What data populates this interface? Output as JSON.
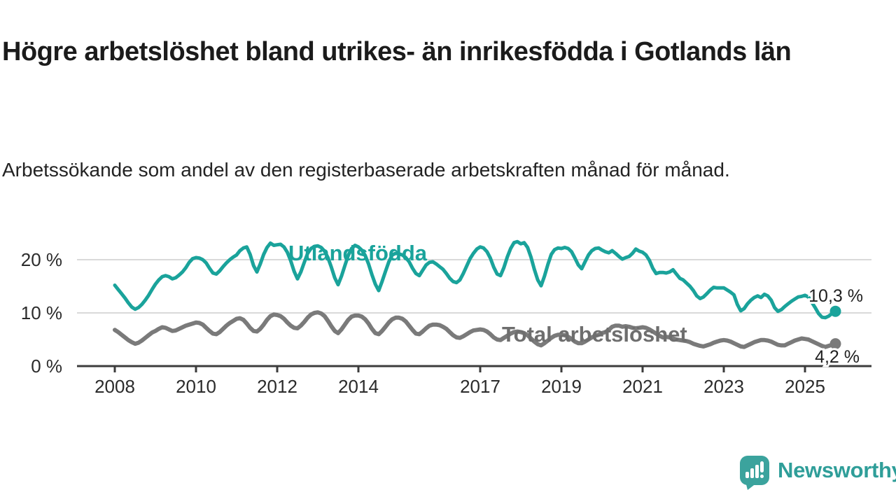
{
  "header": {
    "title": "Högre arbetslöshet bland utrikes- än inrikesfödda i Gotlands län",
    "subtitle": "Arbetssökande som andel av den registerbaserade arbetskraften månad för månad."
  },
  "footer": {
    "brand": "Newsworthy",
    "icon_color": "#3ba39d",
    "text_color": "#2f9e99"
  },
  "chart_data": {
    "type": "line",
    "title": "Högre arbetslöshet bland utrikes- än inrikesfödda i Gotlands län",
    "subtitle": "Arbetssökande som andel av den registerbaserade arbetskraften månad för månad.",
    "unit": "%",
    "grid": "horizontal-only",
    "colors": {
      "grid": "#d9d9d9",
      "axis": "#3c3c3c",
      "tick_text": "#2b2b2b",
      "value_label": "#1f1f1f"
    },
    "x_axis": {
      "tick_years": [
        2008,
        2010,
        2012,
        2014,
        2017,
        2019,
        2021,
        2023,
        2025
      ],
      "tick_labels": [
        "2008",
        "2010",
        "2012",
        "2014",
        "2017",
        "2019",
        "2021",
        "2023",
        "2025"
      ],
      "range_years": [
        2007.1,
        2026.4
      ]
    },
    "y_axis": {
      "tick_values": [
        0,
        10,
        20
      ],
      "tick_labels": [
        "0 %",
        "10 %",
        "20 %"
      ],
      "grid_values": [
        10,
        20
      ],
      "range": [
        0,
        24
      ]
    },
    "series": [
      {
        "name": "Utlandsfödda",
        "color": "#1aa39b",
        "label_color": "#1aa39b",
        "end_label": "10,3 %",
        "end_value": 10.3,
        "start_year": 2008,
        "start_month": 1,
        "values": [
          15.2,
          14.4,
          13.6,
          12.8,
          11.9,
          11.1,
          10.7,
          11.0,
          11.6,
          12.4,
          13.3,
          14.4,
          15.4,
          16.2,
          16.8,
          17.0,
          16.8,
          16.4,
          16.6,
          17.1,
          17.7,
          18.5,
          19.5,
          20.2,
          20.4,
          20.3,
          20.0,
          19.4,
          18.4,
          17.5,
          17.3,
          17.9,
          18.7,
          19.4,
          20.0,
          20.5,
          20.9,
          21.7,
          22.2,
          22.4,
          21.0,
          18.9,
          17.7,
          19.2,
          21.0,
          22.3,
          23.1,
          22.7,
          22.8,
          22.9,
          22.4,
          21.4,
          19.8,
          17.8,
          16.4,
          17.7,
          19.5,
          21.2,
          22.1,
          22.5,
          22.6,
          22.3,
          21.6,
          20.4,
          18.6,
          16.6,
          15.3,
          16.9,
          18.9,
          20.8,
          22.1,
          22.7,
          22.4,
          21.8,
          20.8,
          19.2,
          17.2,
          15.4,
          14.2,
          15.9,
          17.8,
          19.6,
          20.9,
          21.2,
          21.1,
          20.9,
          20.4,
          19.6,
          18.4,
          17.4,
          17.0,
          18.0,
          19.0,
          19.5,
          19.6,
          19.2,
          18.7,
          18.2,
          17.4,
          16.5,
          15.9,
          15.7,
          16.2,
          17.4,
          18.8,
          20.2,
          21.2,
          22.0,
          22.4,
          22.2,
          21.5,
          20.3,
          18.6,
          17.3,
          17.0,
          18.5,
          20.5,
          22.1,
          23.2,
          23.4,
          23.0,
          23.2,
          22.3,
          20.5,
          18.2,
          16.2,
          15.1,
          16.9,
          19.1,
          21.0,
          21.9,
          22.2,
          22.1,
          22.3,
          22.1,
          21.5,
          20.3,
          19.0,
          18.3,
          19.6,
          20.9,
          21.7,
          22.1,
          22.2,
          21.8,
          21.5,
          21.3,
          21.7,
          21.2,
          20.6,
          20.1,
          20.4,
          20.6,
          21.2,
          22.0,
          21.6,
          21.4,
          20.9,
          19.9,
          18.4,
          17.4,
          17.6,
          17.6,
          17.5,
          17.7,
          18.1,
          17.3,
          16.5,
          16.2,
          15.6,
          15.0,
          14.2,
          13.2,
          12.7,
          13.0,
          13.6,
          14.3,
          14.8,
          14.7,
          14.7,
          14.7,
          14.3,
          13.9,
          13.4,
          11.6,
          10.4,
          10.8,
          11.7,
          12.4,
          12.9,
          13.2,
          12.9,
          13.5,
          13.2,
          12.4,
          11.0,
          10.3,
          10.6,
          11.2,
          11.7,
          12.2,
          12.6,
          13.0,
          13.1,
          13.3,
          13.0,
          12.0,
          11.0,
          9.9,
          9.2,
          9.1,
          9.4,
          9.9,
          10.3
        ]
      },
      {
        "name": "Total arbetslöshet",
        "color": "#7a7a7a",
        "label_color": "#6e6e6e",
        "end_label": "4,2 %",
        "end_value": 4.2,
        "start_year": 2008,
        "start_month": 1,
        "values": [
          6.8,
          6.4,
          5.9,
          5.4,
          4.9,
          4.5,
          4.2,
          4.4,
          4.8,
          5.3,
          5.8,
          6.3,
          6.6,
          7.0,
          7.3,
          7.2,
          6.9,
          6.6,
          6.7,
          7.0,
          7.3,
          7.6,
          7.8,
          8.0,
          8.2,
          8.1,
          7.8,
          7.2,
          6.6,
          6.1,
          6.0,
          6.4,
          7.0,
          7.6,
          8.1,
          8.5,
          8.9,
          9.0,
          8.7,
          8.0,
          7.2,
          6.6,
          6.5,
          7.0,
          7.8,
          8.7,
          9.4,
          9.7,
          9.6,
          9.4,
          8.9,
          8.2,
          7.6,
          7.2,
          7.1,
          7.6,
          8.3,
          9.1,
          9.7,
          10.0,
          10.1,
          9.9,
          9.4,
          8.5,
          7.5,
          6.6,
          6.2,
          6.9,
          7.8,
          8.7,
          9.3,
          9.5,
          9.5,
          9.3,
          8.8,
          8.0,
          7.0,
          6.2,
          6.0,
          6.6,
          7.4,
          8.2,
          8.8,
          9.1,
          9.1,
          8.9,
          8.4,
          7.6,
          6.8,
          6.1,
          6.0,
          6.5,
          7.1,
          7.6,
          7.8,
          7.8,
          7.7,
          7.4,
          7.0,
          6.4,
          5.8,
          5.4,
          5.3,
          5.6,
          6.0,
          6.4,
          6.7,
          6.8,
          6.9,
          6.8,
          6.5,
          6.0,
          5.4,
          5.0,
          4.9,
          5.3,
          5.7,
          6.1,
          6.4,
          6.5,
          6.4,
          6.2,
          5.8,
          5.2,
          4.6,
          4.1,
          3.9,
          4.3,
          4.8,
          5.3,
          5.7,
          5.9,
          5.9,
          5.8,
          5.5,
          5.1,
          4.6,
          4.3,
          4.3,
          4.6,
          5.0,
          5.4,
          5.7,
          5.9,
          6.2,
          6.4,
          6.8,
          7.4,
          7.6,
          7.6,
          7.4,
          7.5,
          7.4,
          7.2,
          7.1,
          7.2,
          7.3,
          7.2,
          6.9,
          6.5,
          6.1,
          5.7,
          5.4,
          5.5,
          5.4,
          5.2,
          5.0,
          4.9,
          4.8,
          4.7,
          4.5,
          4.2,
          4.0,
          3.8,
          3.7,
          3.9,
          4.1,
          4.4,
          4.6,
          4.8,
          4.9,
          4.8,
          4.6,
          4.3,
          4.0,
          3.7,
          3.6,
          3.9,
          4.2,
          4.5,
          4.7,
          4.9,
          4.9,
          4.8,
          4.6,
          4.3,
          4.0,
          3.9,
          3.9,
          4.2,
          4.5,
          4.8,
          5.0,
          5.2,
          5.1,
          5.0,
          4.7,
          4.4,
          4.1,
          3.8,
          3.6,
          3.8,
          4.0,
          4.2
        ]
      }
    ]
  }
}
